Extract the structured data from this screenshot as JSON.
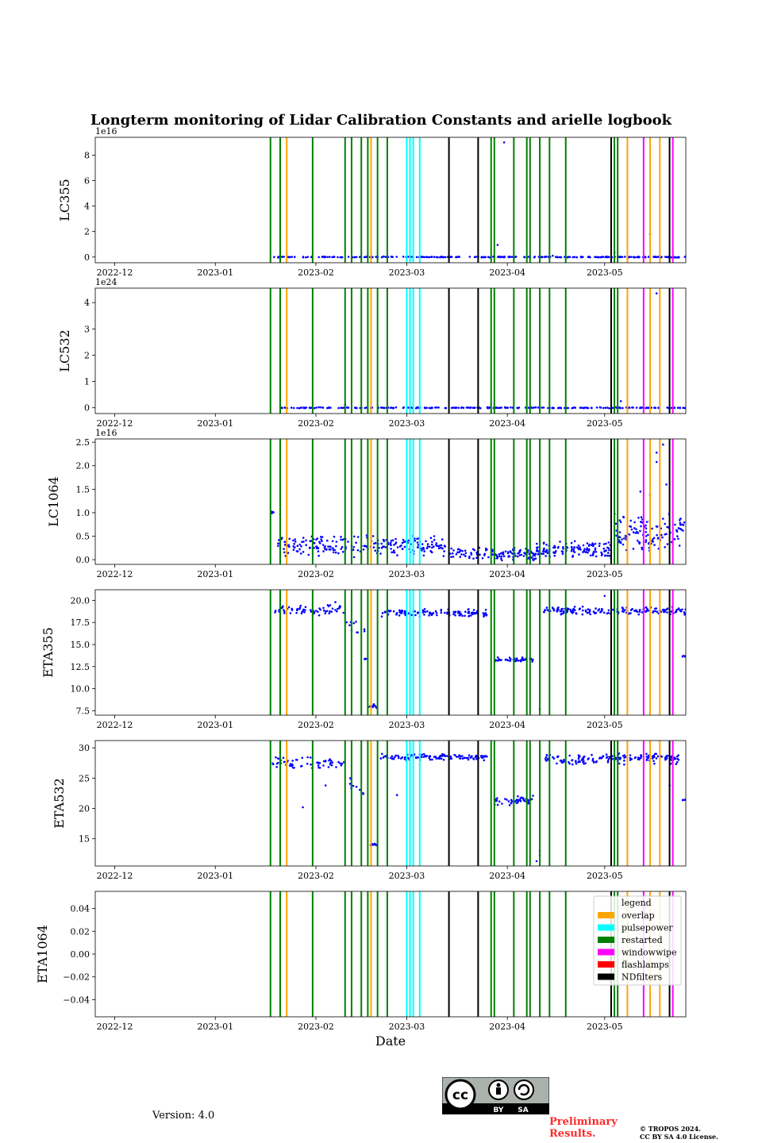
{
  "title": "Longterm monitoring of Lidar Calibration Constants and arielle logbook",
  "xlabel": "Date",
  "version": "Version: 4.0",
  "preliminary": [
    "Preliminary",
    "Results."
  ],
  "copyright": [
    "© TROPOS 2024.",
    "CC BY SA 4.0 License."
  ],
  "cc_badge": {
    "main": "cc",
    "by": "BY",
    "sa": "SA"
  },
  "colors": {
    "data": "#0000ff",
    "overlap": "#ffa500",
    "pulsepower": "#00ffff",
    "restarted": "#008000",
    "windowwipe": "#ff00ff",
    "flashlamps": "#ff0000",
    "NDfilters": "#000000"
  },
  "chart_data": {
    "type": "scatter",
    "x_range": [
      "2022-11-25",
      "2023-05-26"
    ],
    "x_ticks": [
      "2022-12",
      "2023-01",
      "2023-02",
      "2023-03",
      "2023-04",
      "2023-05"
    ],
    "x_tick_dates": [
      "2022-12-01",
      "2023-01-01",
      "2023-02-01",
      "2023-03-01",
      "2023-04-01",
      "2023-05-01"
    ],
    "legend": {
      "title": "legend",
      "placement": "top-right",
      "entries": [
        {
          "label": "overlap",
          "color": "#ffa500"
        },
        {
          "label": "pulsepower",
          "color": "#00ffff"
        },
        {
          "label": "restarted",
          "color": "#008000"
        },
        {
          "label": "windowwipe",
          "color": "#ff00ff"
        },
        {
          "label": "flashlamps",
          "color": "#ff0000"
        },
        {
          "label": "NDfilters",
          "color": "#000000"
        }
      ]
    },
    "events": [
      {
        "type": "restarted",
        "dates": [
          "2023-01-18",
          "2023-01-21",
          "2023-01-31",
          "2023-02-10",
          "2023-02-12",
          "2023-02-15",
          "2023-02-17",
          "2023-02-20",
          "2023-02-23",
          "2023-03-27",
          "2023-03-28",
          "2023-04-03",
          "2023-04-07",
          "2023-04-08",
          "2023-04-11",
          "2023-04-14",
          "2023-04-19",
          "2023-05-04",
          "2023-05-05"
        ]
      },
      {
        "type": "overlap",
        "dates": [
          "2023-01-23",
          "2023-02-18",
          "2023-05-08",
          "2023-05-15",
          "2023-05-18"
        ]
      },
      {
        "type": "pulsepower",
        "dates": [
          "2023-03-01",
          "2023-03-02",
          "2023-03-03",
          "2023-03-05"
        ]
      },
      {
        "type": "NDfilters",
        "dates": [
          "2023-03-14",
          "2023-03-23",
          "2023-05-03",
          "2023-05-21"
        ]
      },
      {
        "type": "windowwipe",
        "dates": [
          "2023-05-13",
          "2023-05-22"
        ]
      }
    ],
    "panels": [
      {
        "name": "LC355",
        "ylabel": "LC355",
        "ylim": [
          -0.45,
          9.4
        ],
        "yticks": [
          0,
          2,
          4,
          6,
          8
        ],
        "ytick_labels": [
          "0",
          "2",
          "4",
          "6",
          "8"
        ],
        "offset_label": "1e16",
        "segments": [
          {
            "start": "2023-01-19",
            "end": "2023-05-26",
            "n": 260,
            "center": 0.0,
            "spread": 0.04,
            "seed": 1
          }
        ],
        "points": [
          [
            "2023-03-31",
            9.0
          ],
          [
            "2023-03-29",
            0.95
          ],
          [
            "2023-05-15",
            1.8
          ],
          [
            "2023-05-04",
            0.35
          ],
          [
            "2023-04-15",
            0.1
          ]
        ]
      },
      {
        "name": "LC532",
        "ylabel": "LC532",
        "ylim": [
          -0.22,
          4.55
        ],
        "yticks": [
          0,
          1,
          2,
          3,
          4
        ],
        "ytick_labels": [
          "0",
          "1",
          "2",
          "3",
          "4"
        ],
        "offset_label": "1e24",
        "segments": [
          {
            "start": "2023-01-19",
            "end": "2023-05-26",
            "n": 240,
            "center": 0.0,
            "spread": 0.02,
            "seed": 2
          }
        ],
        "points": [
          [
            "2023-05-17",
            4.35
          ],
          [
            "2023-05-06",
            0.25
          ],
          [
            "2023-02-10",
            0.12
          ]
        ]
      },
      {
        "name": "LC1064",
        "ylabel": "LC1064",
        "ylim": [
          -0.1,
          2.57
        ],
        "yticks": [
          0,
          0.5,
          1.0,
          1.5,
          2.0,
          2.5
        ],
        "ytick_labels": [
          "0.0",
          "0.5",
          "1.0",
          "1.5",
          "2.0",
          "2.5"
        ],
        "offset_label": "1e16",
        "segments": [
          {
            "start": "2023-01-18",
            "end": "2023-01-19",
            "n": 4,
            "center": 1.0,
            "spread": 0.08,
            "seed": 3
          },
          {
            "start": "2023-01-20",
            "end": "2023-03-13",
            "n": 230,
            "center": 0.3,
            "spread": 0.25,
            "seed": 4
          },
          {
            "start": "2023-03-14",
            "end": "2023-04-10",
            "n": 120,
            "center": 0.12,
            "spread": 0.15,
            "seed": 5
          },
          {
            "start": "2023-04-10",
            "end": "2023-05-03",
            "n": 130,
            "center": 0.22,
            "spread": 0.2,
            "seed": 6
          },
          {
            "start": "2023-05-04",
            "end": "2023-05-26",
            "n": 120,
            "center": 0.6,
            "spread": 0.45,
            "seed": 7
          }
        ],
        "points": [
          [
            "2023-05-19",
            2.45
          ],
          [
            "2023-05-17",
            2.28
          ],
          [
            "2023-05-17",
            2.08
          ],
          [
            "2023-05-20",
            1.6
          ],
          [
            "2023-05-15",
            1.38
          ],
          [
            "2023-05-12",
            1.45
          ]
        ]
      },
      {
        "name": "ETA355",
        "ylabel": "ETA355",
        "ylim": [
          7.0,
          21.2
        ],
        "yticks": [
          7.5,
          10.0,
          12.5,
          15.0,
          17.5,
          20.0
        ],
        "ytick_labels": [
          "7.5",
          "10.0",
          "12.5",
          "15.0",
          "17.5",
          "20.0"
        ],
        "offset_label": "",
        "segments": [
          {
            "start": "2023-01-18",
            "end": "2023-02-10",
            "n": 60,
            "center": 18.9,
            "spread": 0.7,
            "seed": 8
          },
          {
            "start": "2023-02-10",
            "end": "2023-02-16",
            "n": 10,
            "center": 16.8,
            "spread": 1.0,
            "seed": 9
          },
          {
            "start": "2023-02-16",
            "end": "2023-02-17",
            "n": 4,
            "center": 13.3,
            "spread": 0.2,
            "seed": 10
          },
          {
            "start": "2023-02-17",
            "end": "2023-02-20",
            "n": 10,
            "center": 8.0,
            "spread": 0.3,
            "seed": 11
          },
          {
            "start": "2023-02-21",
            "end": "2023-03-26",
            "n": 120,
            "center": 18.6,
            "spread": 0.5,
            "seed": 12
          },
          {
            "start": "2023-03-28",
            "end": "2023-04-09",
            "n": 45,
            "center": 13.3,
            "spread": 0.3,
            "seed": 13
          },
          {
            "start": "2023-04-12",
            "end": "2023-05-26",
            "n": 160,
            "center": 18.8,
            "spread": 0.5,
            "seed": 14
          },
          {
            "start": "2023-05-25",
            "end": "2023-05-26",
            "n": 4,
            "center": 13.7,
            "spread": 0.1,
            "seed": 15
          }
        ],
        "points": [
          [
            "2023-05-01",
            20.5
          ],
          [
            "2023-04-11",
            7.7
          ],
          [
            "2023-02-07",
            19.8
          ]
        ]
      },
      {
        "name": "ETA532",
        "ylabel": "ETA532",
        "ylim": [
          10.5,
          31.2
        ],
        "yticks": [
          15,
          20,
          25,
          30
        ],
        "ytick_labels": [
          "15",
          "20",
          "25",
          "30"
        ],
        "offset_label": "",
        "segments": [
          {
            "start": "2023-01-18",
            "end": "2023-02-10",
            "n": 60,
            "center": 27.5,
            "spread": 1.2,
            "seed": 16
          },
          {
            "start": "2023-02-11",
            "end": "2023-02-16",
            "n": 10,
            "center": 24.0,
            "spread": 3.0,
            "seed": 17
          },
          {
            "start": "2023-02-17",
            "end": "2023-02-20",
            "n": 10,
            "center": 14.0,
            "spread": 0.2,
            "seed": 18
          },
          {
            "start": "2023-02-21",
            "end": "2023-03-26",
            "n": 120,
            "center": 28.5,
            "spread": 0.6,
            "seed": 19
          },
          {
            "start": "2023-03-28",
            "end": "2023-04-09",
            "n": 45,
            "center": 21.3,
            "spread": 0.9,
            "seed": 20
          },
          {
            "start": "2023-04-12",
            "end": "2023-05-25",
            "n": 160,
            "center": 28.2,
            "spread": 1.0,
            "seed": 21
          },
          {
            "start": "2023-05-25",
            "end": "2023-05-26",
            "n": 4,
            "center": 21.5,
            "spread": 0.2,
            "seed": 22
          }
        ],
        "points": [
          [
            "2023-01-28",
            20.2
          ],
          [
            "2023-02-26",
            22.2
          ],
          [
            "2023-04-10",
            11.3
          ],
          [
            "2023-04-11",
            12.3
          ],
          [
            "2023-04-11",
            13.0
          ],
          [
            "2023-05-21",
            23.8
          ],
          [
            "2023-02-04",
            23.8
          ]
        ]
      },
      {
        "name": "ETA1064",
        "ylabel": "ETA1064",
        "ylim": [
          -0.055,
          0.055
        ],
        "yticks": [
          -0.04,
          -0.02,
          0.0,
          0.02,
          0.04
        ],
        "ytick_labels": [
          "−0.04",
          "−0.02",
          "0.00",
          "0.02",
          "0.04"
        ],
        "offset_label": "",
        "segments": [],
        "points": []
      }
    ]
  }
}
